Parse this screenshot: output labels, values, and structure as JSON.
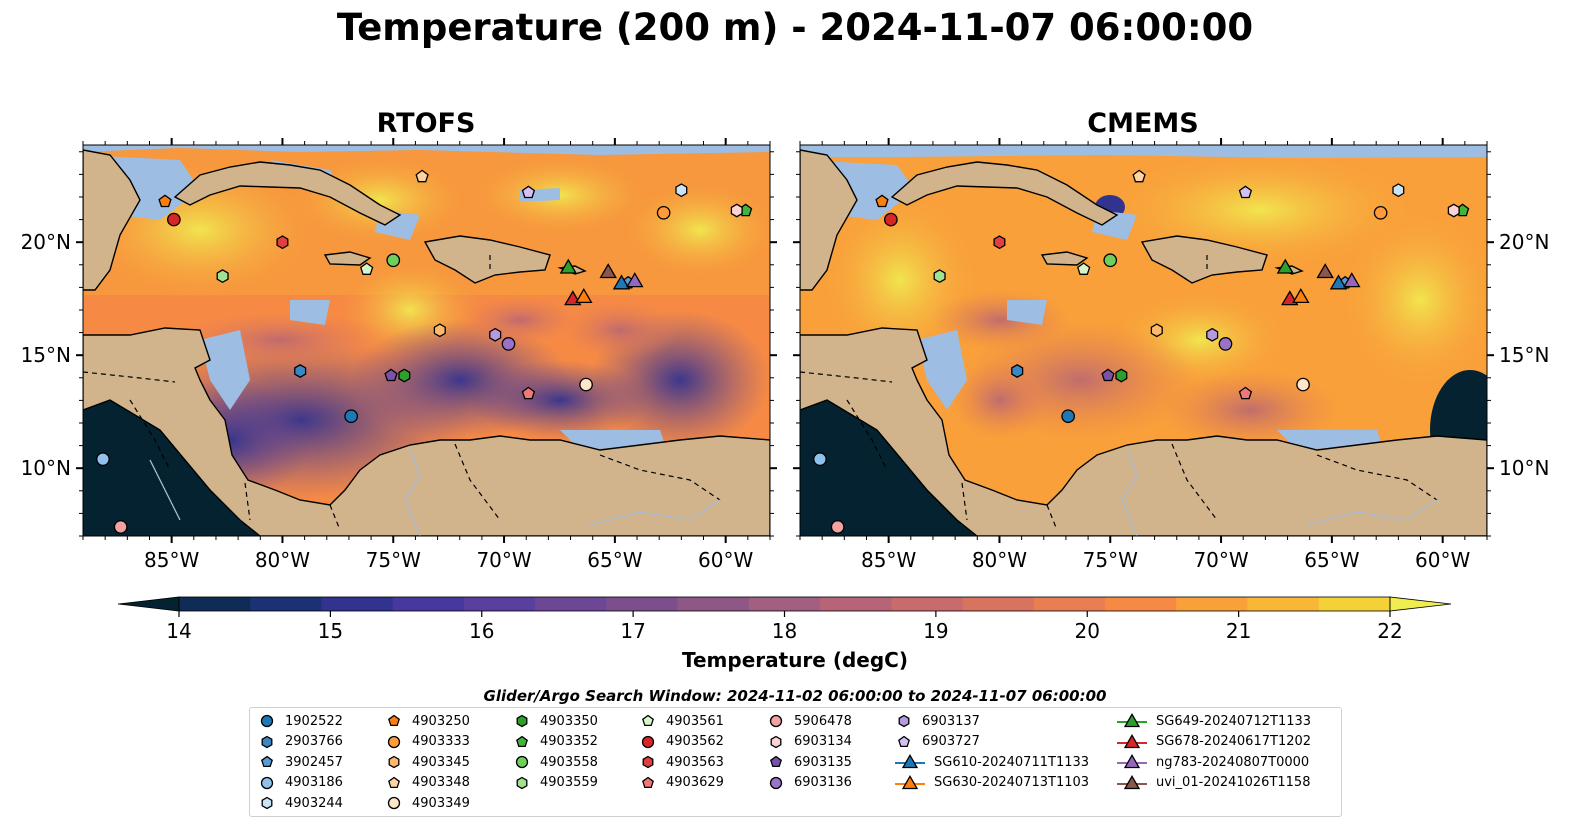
{
  "title": "Temperature (200 m) - 2024-11-07 06:00:00",
  "panels": [
    {
      "title": "RTOFS"
    },
    {
      "title": "CMEMS"
    }
  ],
  "map": {
    "lon_range": [
      -89,
      -58
    ],
    "lat_range": [
      7,
      24.3
    ],
    "x_ticks": [
      "85°W",
      "80°W",
      "75°W",
      "70°W",
      "65°W",
      "60°W"
    ],
    "x_tick_values": [
      -85,
      -80,
      -75,
      -70,
      -65,
      -60
    ],
    "y_ticks": [
      "20°N",
      "15°N",
      "10°N"
    ],
    "y_tick_values": [
      20,
      15,
      10
    ],
    "colors": {
      "land": "#d2b48c",
      "shelf": "#9dbde3",
      "coast": "#000000",
      "rivers": "#a9bcd4"
    }
  },
  "colorbar": {
    "label": "Temperature (degC)",
    "ticks": [
      "14",
      "15",
      "16",
      "17",
      "18",
      "19",
      "20",
      "21",
      "22"
    ],
    "range": [
      14,
      22
    ],
    "extend": "both",
    "colormap": [
      "#04222f",
      "#0e2c55",
      "#1c3174",
      "#32328f",
      "#46389f",
      "#5a3f9f",
      "#6b4795",
      "#7c4f8c",
      "#8e5786",
      "#a25f7f",
      "#b66477",
      "#c86b6c",
      "#d8735f",
      "#e97e52",
      "#f68a45",
      "#f9a03a",
      "#f9b737",
      "#f5d139",
      "#f0ed51"
    ]
  },
  "legend": {
    "title": "Glider/Argo Search Window: 2024-11-02 06:00:00 to 2024-11-07 06:00:00",
    "columns": [
      [
        {
          "label": "1902522",
          "marker": "circle",
          "color": "#1f77b4"
        },
        {
          "label": "2903766",
          "marker": "hexagon",
          "color": "#3a87c6"
        },
        {
          "label": "3902457",
          "marker": "pentagon",
          "color": "#5b9bd5"
        },
        {
          "label": "4903186",
          "marker": "circle",
          "color": "#8fc1ea"
        },
        {
          "label": "4903244",
          "marker": "hexagon",
          "color": "#c9e4f7"
        }
      ],
      [
        {
          "label": "4903250",
          "marker": "pentagon",
          "color": "#ff7f0e"
        },
        {
          "label": "4903333",
          "marker": "circle",
          "color": "#ff9a3d"
        },
        {
          "label": "4903345",
          "marker": "hexagon",
          "color": "#ffb86c"
        },
        {
          "label": "4903348",
          "marker": "pentagon",
          "color": "#ffd3a0"
        },
        {
          "label": "4903349",
          "marker": "circle",
          "color": "#ffe6c8"
        }
      ],
      [
        {
          "label": "4903350",
          "marker": "hexagon",
          "color": "#2ca02c"
        },
        {
          "label": "4903352",
          "marker": "pentagon",
          "color": "#43b43a"
        },
        {
          "label": "4903558",
          "marker": "circle",
          "color": "#6fcf5c"
        },
        {
          "label": "4903559",
          "marker": "hexagon",
          "color": "#9fe28f"
        }
      ],
      [
        {
          "label": "4903561",
          "marker": "pentagon",
          "color": "#d6f5c8"
        },
        {
          "label": "4903562",
          "marker": "circle",
          "color": "#d62728"
        },
        {
          "label": "4903563",
          "marker": "hexagon",
          "color": "#e0403f"
        },
        {
          "label": "4903629",
          "marker": "pentagon",
          "color": "#f07878"
        }
      ],
      [
        {
          "label": "5906478",
          "marker": "circle",
          "color": "#f4a1a1"
        },
        {
          "label": "6903134",
          "marker": "hexagon",
          "color": "#fbd3d3"
        },
        {
          "label": "6903135",
          "marker": "pentagon",
          "color": "#7b52ab"
        },
        {
          "label": "6903136",
          "marker": "circle",
          "color": "#9a73c8"
        }
      ],
      [
        {
          "label": "6903137",
          "marker": "hexagon",
          "color": "#b59ae0"
        },
        {
          "label": "6903727",
          "marker": "pentagon",
          "color": "#d3c1f2"
        },
        {
          "label": "SG610-20240711T1133",
          "marker": "triangle-line",
          "color": "#1f77b4"
        },
        {
          "label": "SG630-20240713T1103",
          "marker": "triangle-line",
          "color": "#ff7f0e"
        }
      ],
      [
        {
          "label": "SG649-20240712T1133",
          "marker": "triangle-line",
          "color": "#2ca02c"
        },
        {
          "label": "SG678-20240617T1202",
          "marker": "triangle-line",
          "color": "#d62728"
        },
        {
          "label": "ng783-20240807T0000",
          "marker": "triangle-line",
          "color": "#9467bd"
        },
        {
          "label": "uvi_01-20241026T1158",
          "marker": "triangle-line",
          "color": "#8c564b"
        }
      ]
    ]
  },
  "floats": [
    {
      "id": "1902522",
      "lon": -76.9,
      "lat": 12.3
    },
    {
      "id": "2903766",
      "lon": -79.2,
      "lat": 14.3
    },
    {
      "id": "3902457",
      "lon": -64.4,
      "lat": 18.2
    },
    {
      "id": "4903186",
      "lon": -88.1,
      "lat": 10.4
    },
    {
      "id": "4903244",
      "lon": -62.0,
      "lat": 22.3
    },
    {
      "id": "4903250",
      "lon": -85.3,
      "lat": 21.8
    },
    {
      "id": "4903333",
      "lon": -62.8,
      "lat": 21.3
    },
    {
      "id": "4903345",
      "lon": -72.9,
      "lat": 16.1
    },
    {
      "id": "4903348",
      "lon": -73.7,
      "lat": 22.9
    },
    {
      "id": "4903349",
      "lon": -66.3,
      "lat": 13.7
    },
    {
      "id": "4903350",
      "lon": -74.5,
      "lat": 14.1
    },
    {
      "id": "4903352",
      "lon": -59.1,
      "lat": 21.4
    },
    {
      "id": "4903558",
      "lon": -75.0,
      "lat": 19.2
    },
    {
      "id": "4903559",
      "lon": -82.7,
      "lat": 18.5
    },
    {
      "id": "4903561",
      "lon": -76.2,
      "lat": 18.8
    },
    {
      "id": "4903562",
      "lon": -84.9,
      "lat": 21.0
    },
    {
      "id": "4903563",
      "lon": -80.0,
      "lat": 20.0
    },
    {
      "id": "4903629",
      "lon": -68.9,
      "lat": 13.3
    },
    {
      "id": "5906478",
      "lon": -87.3,
      "lat": 7.4
    },
    {
      "id": "6903134",
      "lon": -59.5,
      "lat": 21.4
    },
    {
      "id": "6903135",
      "lon": -75.1,
      "lat": 14.1
    },
    {
      "id": "6903136",
      "lon": -69.8,
      "lat": 15.5
    },
    {
      "id": "6903137",
      "lon": -70.4,
      "lat": 15.9
    },
    {
      "id": "6903727",
      "lon": -68.9,
      "lat": 22.2
    }
  ],
  "gliders": [
    {
      "id": "SG649-20240712T1133",
      "lon": -67.1,
      "lat": 18.9
    },
    {
      "id": "SG678-20240617T1202",
      "lon": -66.9,
      "lat": 17.5
    },
    {
      "id": "SG630-20240713T1103",
      "lon": -66.4,
      "lat": 17.6
    },
    {
      "id": "SG610-20240711T1133",
      "lon": -64.7,
      "lat": 18.2
    },
    {
      "id": "uvi_01-20241026T1158",
      "lon": -65.3,
      "lat": 18.7
    },
    {
      "id": "ng783-20240807T0000",
      "lon": -64.1,
      "lat": 18.3
    }
  ]
}
